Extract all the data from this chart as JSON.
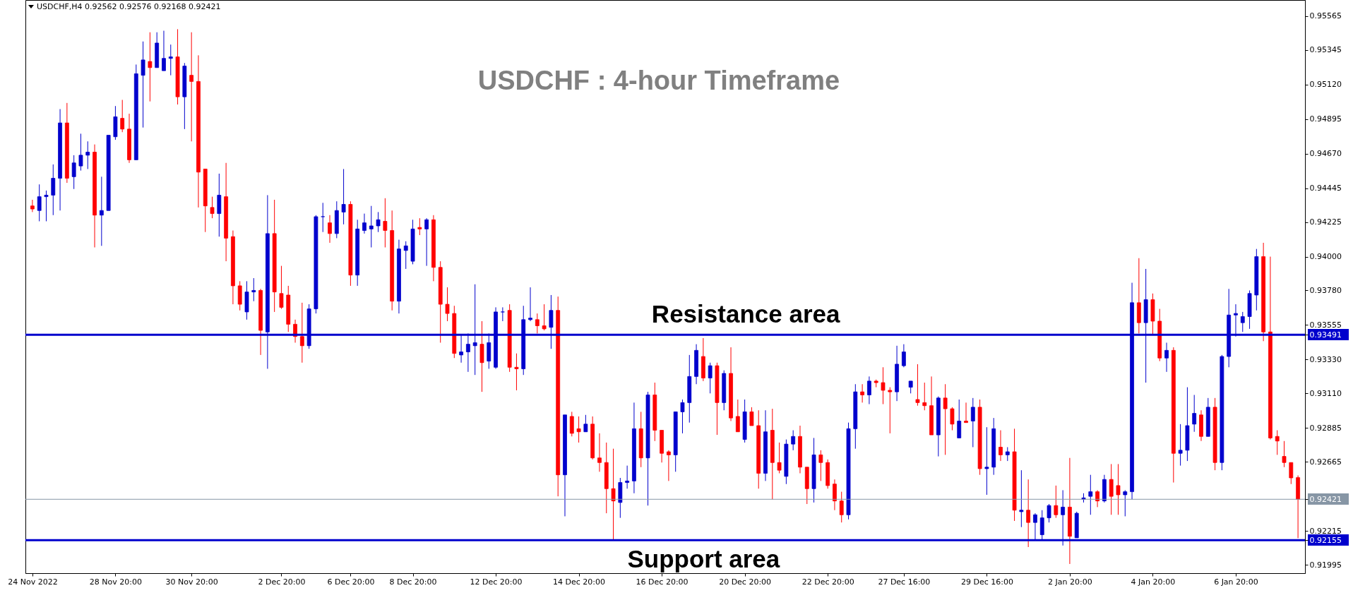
{
  "chart_data": {
    "type": "candlestick",
    "title": "USDCHF : 4-hour Timeframe",
    "annotations": [
      "USDCHF,H4  0.92562 0.92576 0.92168 0.92421"
    ],
    "categories": [
      "24 Nov 2022",
      null,
      null,
      null,
      null,
      null,
      null,
      null,
      null,
      null,
      null,
      null,
      "28 Nov 20:00",
      null,
      null,
      null,
      null,
      null,
      null,
      null,
      null,
      null,
      null,
      "30 Nov 20:00",
      null,
      null,
      null,
      null,
      null,
      null,
      null,
      null,
      null,
      null,
      null,
      null,
      "2 Dec 20:00",
      null,
      null,
      null,
      null,
      null,
      null,
      null,
      null,
      null,
      "6 Dec 20:00",
      null,
      null,
      null,
      null,
      null,
      null,
      null,
      null,
      "8 Dec 20:00",
      null,
      null,
      null,
      null,
      null,
      null,
      null,
      null,
      null,
      null,
      null,
      "12 Dec 20:00",
      null,
      null,
      null,
      null,
      null,
      null,
      null,
      null,
      null,
      null,
      null,
      "14 Dec 20:00",
      null,
      null,
      null,
      null,
      null,
      null,
      null,
      null,
      null,
      null,
      null,
      "16 Dec 20:00",
      null,
      null,
      null,
      null,
      null,
      null,
      null,
      null,
      null,
      null,
      null,
      "20 Dec 20:00",
      null,
      null,
      null,
      null,
      null,
      null,
      null,
      null,
      null,
      null,
      null,
      "22 Dec 20:00",
      null,
      null,
      null,
      null,
      null,
      null,
      null,
      null,
      null,
      null,
      "27 Dec 16:00",
      null,
      null,
      null,
      null,
      null,
      null,
      null,
      null,
      null,
      null,
      null,
      "29 Dec 16:00",
      null,
      null,
      null,
      null,
      null,
      null,
      null,
      null,
      null,
      null,
      null,
      "2 Jan 20:00",
      null,
      null,
      null,
      null,
      null,
      null,
      null,
      null,
      null,
      null,
      null,
      "4 Jan 20:00",
      null,
      null,
      null,
      null,
      null,
      null,
      null,
      null,
      null,
      null,
      null,
      "6 Jan 20:00",
      null,
      null,
      null,
      null,
      null,
      null,
      null,
      null,
      null
    ],
    "ohlc": [
      [
        0.9433,
        0.9437,
        0.9429,
        0.9431
      ],
      [
        0.943,
        0.9447,
        0.9423,
        0.9439
      ],
      [
        0.9439,
        0.9443,
        0.9423,
        0.944
      ],
      [
        0.944,
        0.946,
        0.9427,
        0.9451
      ],
      [
        0.9451,
        0.9496,
        0.943,
        0.9487
      ],
      [
        0.9487,
        0.95,
        0.9448,
        0.9451
      ],
      [
        0.9452,
        0.9466,
        0.9444,
        0.9461
      ],
      [
        0.9459,
        0.948,
        0.9456,
        0.9466
      ],
      [
        0.9466,
        0.9475,
        0.9457,
        0.9468
      ],
      [
        0.9468,
        0.9473,
        0.9406,
        0.9427
      ],
      [
        0.9427,
        0.9452,
        0.9407,
        0.943
      ],
      [
        0.943,
        0.9479,
        0.943,
        0.9479
      ],
      [
        0.9478,
        0.9498,
        0.9476,
        0.9491
      ],
      [
        0.949,
        0.9502,
        0.9481,
        0.9483
      ],
      [
        0.9483,
        0.9493,
        0.9461,
        0.9463
      ],
      [
        0.9463,
        0.9525,
        0.9463,
        0.9519
      ],
      [
        0.9518,
        0.954,
        0.9484,
        0.9528
      ],
      [
        0.9527,
        0.9546,
        0.9501,
        0.9523
      ],
      [
        0.9523,
        0.9546,
        0.9523,
        0.9539
      ],
      [
        0.9521,
        0.9547,
        0.9521,
        0.9529
      ],
      [
        0.9529,
        0.9538,
        0.9518,
        0.953
      ],
      [
        0.953,
        0.9548,
        0.9499,
        0.9504
      ],
      [
        0.9504,
        0.9526,
        0.9483,
        0.9524
      ],
      [
        0.9518,
        0.9546,
        0.9475,
        0.9514
      ],
      [
        0.9514,
        0.9531,
        0.9432,
        0.9455
      ],
      [
        0.9457,
        0.9457,
        0.9416,
        0.9433
      ],
      [
        0.9432,
        0.9439,
        0.9425,
        0.9428
      ],
      [
        0.9428,
        0.9454,
        0.9413,
        0.944
      ],
      [
        0.9439,
        0.9461,
        0.9397,
        0.9412
      ],
      [
        0.9413,
        0.9417,
        0.9369,
        0.9381
      ],
      [
        0.9381,
        0.9384,
        0.9365,
        0.9369
      ],
      [
        0.9364,
        0.9384,
        0.9359,
        0.9377
      ],
      [
        0.9377,
        0.9386,
        0.9371,
        0.9378
      ],
      [
        0.9378,
        0.9379,
        0.9336,
        0.9352
      ],
      [
        0.9351,
        0.944,
        0.9327,
        0.9415
      ],
      [
        0.9415,
        0.9437,
        0.9364,
        0.9377
      ],
      [
        0.9376,
        0.9394,
        0.9366,
        0.9367
      ],
      [
        0.9375,
        0.9381,
        0.9351,
        0.9356
      ],
      [
        0.9356,
        0.9359,
        0.9344,
        0.9348
      ],
      [
        0.9348,
        0.937,
        0.9331,
        0.9342
      ],
      [
        0.9342,
        0.9369,
        0.934,
        0.9366
      ],
      [
        0.9366,
        0.9427,
        0.9363,
        0.9426
      ],
      [
        0.9426,
        0.9435,
        0.9416,
        0.9426
      ],
      [
        0.9422,
        0.9427,
        0.9409,
        0.9415
      ],
      [
        0.9415,
        0.9436,
        0.9412,
        0.943
      ],
      [
        0.9429,
        0.9457,
        0.9421,
        0.9434
      ],
      [
        0.9434,
        0.9436,
        0.9381,
        0.9388
      ],
      [
        0.9388,
        0.9424,
        0.9381,
        0.9418
      ],
      [
        0.9417,
        0.9428,
        0.9415,
        0.9422
      ],
      [
        0.9418,
        0.9433,
        0.9406,
        0.942
      ],
      [
        0.942,
        0.9429,
        0.9416,
        0.9424
      ],
      [
        0.9423,
        0.9438,
        0.9406,
        0.9417
      ],
      [
        0.9417,
        0.943,
        0.9365,
        0.9371
      ],
      [
        0.9371,
        0.9411,
        0.9363,
        0.9405
      ],
      [
        0.9404,
        0.941,
        0.9392,
        0.9407
      ],
      [
        0.9397,
        0.9424,
        0.9395,
        0.9418
      ],
      [
        0.9419,
        0.9425,
        0.9414,
        0.9418
      ],
      [
        0.9418,
        0.9425,
        0.9394,
        0.9424
      ],
      [
        0.9424,
        0.9427,
        0.9384,
        0.9393
      ],
      [
        0.9393,
        0.9397,
        0.9344,
        0.9369
      ],
      [
        0.9369,
        0.938,
        0.9358,
        0.9363
      ],
      [
        0.9363,
        0.9368,
        0.9334,
        0.9337
      ],
      [
        0.9336,
        0.9349,
        0.9331,
        0.9338
      ],
      [
        0.9338,
        0.935,
        0.9325,
        0.9343
      ],
      [
        0.9342,
        0.9382,
        0.9323,
        0.9344
      ],
      [
        0.9343,
        0.9358,
        0.9312,
        0.9331
      ],
      [
        0.9332,
        0.935,
        0.9327,
        0.9344
      ],
      [
        0.9328,
        0.9367,
        0.9327,
        0.9364
      ],
      [
        0.9364,
        0.9367,
        0.9358,
        0.9364
      ],
      [
        0.9365,
        0.9369,
        0.9325,
        0.9328
      ],
      [
        0.9328,
        0.9337,
        0.9313,
        0.9327
      ],
      [
        0.9327,
        0.9368,
        0.9323,
        0.9359
      ],
      [
        0.9359,
        0.938,
        0.9358,
        0.936
      ],
      [
        0.9359,
        0.9363,
        0.935,
        0.9355
      ],
      [
        0.9355,
        0.9369,
        0.9352,
        0.9353
      ],
      [
        0.9354,
        0.9375,
        0.934,
        0.9365
      ],
      [
        0.9365,
        0.9374,
        0.9244,
        0.9258
      ],
      [
        0.9258,
        0.9297,
        0.9231,
        0.9297
      ],
      [
        0.9296,
        0.9299,
        0.9283,
        0.9285
      ],
      [
        0.9288,
        0.9296,
        0.9279,
        0.9286
      ],
      [
        0.9286,
        0.9297,
        0.9286,
        0.9291
      ],
      [
        0.9291,
        0.9296,
        0.9268,
        0.9269
      ],
      [
        0.9269,
        0.9285,
        0.926,
        0.9266
      ],
      [
        0.9266,
        0.9279,
        0.9233,
        0.9249
      ],
      [
        0.9249,
        0.9275,
        0.9216,
        0.9241
      ],
      [
        0.924,
        0.9256,
        0.923,
        0.9253
      ],
      [
        0.9253,
        0.9264,
        0.9249,
        0.9254
      ],
      [
        0.9254,
        0.9305,
        0.9246,
        0.9288
      ],
      [
        0.9288,
        0.9299,
        0.9263,
        0.9269
      ],
      [
        0.9269,
        0.9312,
        0.9238,
        0.931
      ],
      [
        0.931,
        0.9318,
        0.928,
        0.9287
      ],
      [
        0.9287,
        0.9287,
        0.9266,
        0.9272
      ],
      [
        0.9273,
        0.9274,
        0.9254,
        0.9271
      ],
      [
        0.9271,
        0.9299,
        0.926,
        0.9299
      ],
      [
        0.9299,
        0.9307,
        0.9285,
        0.9305
      ],
      [
        0.9305,
        0.9336,
        0.9292,
        0.9322
      ],
      [
        0.9322,
        0.9343,
        0.9317,
        0.9339
      ],
      [
        0.9335,
        0.9347,
        0.9319,
        0.9321
      ],
      [
        0.9321,
        0.9331,
        0.9311,
        0.9329
      ],
      [
        0.9329,
        0.9331,
        0.9284,
        0.9305
      ],
      [
        0.9305,
        0.9326,
        0.93,
        0.9324
      ],
      [
        0.9324,
        0.9341,
        0.9293,
        0.9295
      ],
      [
        0.9296,
        0.9307,
        0.9286,
        0.9286
      ],
      [
        0.9281,
        0.9307,
        0.9279,
        0.9299
      ],
      [
        0.9299,
        0.9302,
        0.929,
        0.929
      ],
      [
        0.929,
        0.93,
        0.9249,
        0.9259
      ],
      [
        0.9259,
        0.93,
        0.9254,
        0.9286
      ],
      [
        0.9287,
        0.9301,
        0.9242,
        0.9266
      ],
      [
        0.9266,
        0.9279,
        0.9259,
        0.9261
      ],
      [
        0.9257,
        0.9281,
        0.9252,
        0.9278
      ],
      [
        0.9278,
        0.9287,
        0.9274,
        0.9283
      ],
      [
        0.9283,
        0.929,
        0.9259,
        0.9263
      ],
      [
        0.9263,
        0.9263,
        0.9239,
        0.9249
      ],
      [
        0.9249,
        0.9282,
        0.924,
        0.9271
      ],
      [
        0.9271,
        0.9274,
        0.9254,
        0.9266
      ],
      [
        0.9266,
        0.9268,
        0.9249,
        0.9251
      ],
      [
        0.9252,
        0.9255,
        0.9235,
        0.9241
      ],
      [
        0.9241,
        0.9247,
        0.9227,
        0.9232
      ],
      [
        0.9232,
        0.9292,
        0.9229,
        0.9288
      ],
      [
        0.9288,
        0.9317,
        0.9275,
        0.9312
      ],
      [
        0.9312,
        0.9317,
        0.9305,
        0.931
      ],
      [
        0.931,
        0.9322,
        0.9304,
        0.9319
      ],
      [
        0.9319,
        0.932,
        0.9315,
        0.9318
      ],
      [
        0.9318,
        0.9328,
        0.9304,
        0.9313
      ],
      [
        0.9313,
        0.9315,
        0.9285,
        0.9312
      ],
      [
        0.9312,
        0.9342,
        0.9306,
        0.933
      ],
      [
        0.9329,
        0.9343,
        0.9328,
        0.9338
      ],
      [
        0.9315,
        0.9319,
        0.9311,
        0.9319
      ],
      [
        0.9307,
        0.933,
        0.9303,
        0.9305
      ],
      [
        0.9305,
        0.9318,
        0.93,
        0.9303
      ],
      [
        0.9303,
        0.9322,
        0.9284,
        0.9284
      ],
      [
        0.9284,
        0.9309,
        0.927,
        0.9308
      ],
      [
        0.9308,
        0.9317,
        0.9271,
        0.9301
      ],
      [
        0.9301,
        0.9302,
        0.9287,
        0.9291
      ],
      [
        0.9282,
        0.9307,
        0.9282,
        0.9293
      ],
      [
        0.9293,
        0.9305,
        0.9292,
        0.9292
      ],
      [
        0.9293,
        0.9308,
        0.9276,
        0.9302
      ],
      [
        0.9302,
        0.9307,
        0.9258,
        0.9262
      ],
      [
        0.9262,
        0.9289,
        0.9245,
        0.9263
      ],
      [
        0.9263,
        0.9295,
        0.9258,
        0.9288
      ],
      [
        0.9276,
        0.9287,
        0.9267,
        0.9271
      ],
      [
        0.9271,
        0.9276,
        0.9267,
        0.9273
      ],
      [
        0.9273,
        0.9288,
        0.9228,
        0.9235
      ],
      [
        0.9234,
        0.9261,
        0.9224,
        0.9235
      ],
      [
        0.9235,
        0.9255,
        0.9211,
        0.9227
      ],
      [
        0.9227,
        0.9233,
        0.9216,
        0.9232
      ],
      [
        0.9219,
        0.9235,
        0.9216,
        0.923
      ],
      [
        0.923,
        0.9239,
        0.9227,
        0.9238
      ],
      [
        0.9238,
        0.9251,
        0.923,
        0.9232
      ],
      [
        0.9232,
        0.9248,
        0.9212,
        0.9237
      ],
      [
        0.9237,
        0.9269,
        0.92,
        0.9218
      ],
      [
        0.9217,
        0.9234,
        0.9217,
        0.9233
      ],
      [
        0.9242,
        0.9246,
        0.924,
        0.9243
      ],
      [
        0.9244,
        0.9258,
        0.9232,
        0.9247
      ],
      [
        0.9247,
        0.9248,
        0.9237,
        0.9241
      ],
      [
        0.9241,
        0.9258,
        0.924,
        0.9255
      ],
      [
        0.9255,
        0.9265,
        0.9232,
        0.9244
      ],
      [
        0.9251,
        0.9265,
        0.9232,
        0.9245
      ],
      [
        0.9245,
        0.9248,
        0.9231,
        0.9247
      ],
      [
        0.9247,
        0.9383,
        0.9242,
        0.937
      ],
      [
        0.937,
        0.9399,
        0.935,
        0.9357
      ],
      [
        0.9357,
        0.9392,
        0.9318,
        0.9372
      ],
      [
        0.9372,
        0.9376,
        0.9349,
        0.9358
      ],
      [
        0.9358,
        0.9366,
        0.9332,
        0.9334
      ],
      [
        0.9334,
        0.9344,
        0.9325,
        0.9339
      ],
      [
        0.9339,
        0.9341,
        0.9253,
        0.9272
      ],
      [
        0.9272,
        0.9291,
        0.9264,
        0.9274
      ],
      [
        0.9274,
        0.9315,
        0.9267,
        0.929
      ],
      [
        0.9291,
        0.931,
        0.9286,
        0.9298
      ],
      [
        0.9297,
        0.93,
        0.928,
        0.9283
      ],
      [
        0.9283,
        0.9308,
        0.9283,
        0.9302
      ],
      [
        0.9302,
        0.9308,
        0.9261,
        0.9266
      ],
      [
        0.9266,
        0.9336,
        0.9261,
        0.9335
      ],
      [
        0.9335,
        0.9379,
        0.9328,
        0.9362
      ],
      [
        0.9362,
        0.9369,
        0.9348,
        0.9363
      ],
      [
        0.9357,
        0.9364,
        0.9351,
        0.9361
      ],
      [
        0.9361,
        0.9378,
        0.9353,
        0.9376
      ],
      [
        0.9375,
        0.9405,
        0.9365,
        0.94
      ],
      [
        0.94,
        0.9409,
        0.9345,
        0.9351
      ],
      [
        0.9351,
        0.94,
        0.9281,
        0.9282
      ],
      [
        0.9283,
        0.9287,
        0.9271,
        0.928
      ],
      [
        0.927,
        0.928,
        0.9263,
        0.9266
      ],
      [
        0.9266,
        0.9266,
        0.9252,
        0.9256
      ],
      [
        0.92562,
        0.92576,
        0.92168,
        0.92421
      ]
    ],
    "colors": [
      "#ff0000",
      "#0000cd",
      "#0000cd",
      "#0000cd",
      "#0000cd",
      "#ff0000",
      "#0000cd",
      "#0000cd",
      "#0000cd",
      "#ff0000",
      "#0000cd",
      "#0000cd",
      "#0000cd",
      "#ff0000",
      "#ff0000",
      "#0000cd",
      "#0000cd",
      "#ff0000",
      "#0000cd",
      "#0000cd",
      "#0000cd",
      "#ff0000",
      "#0000cd",
      "#ff0000",
      "#ff0000",
      "#ff0000",
      "#ff0000",
      "#0000cd",
      "#ff0000",
      "#ff0000",
      "#ff0000",
      "#0000cd",
      "#0000cd",
      "#ff0000",
      "#0000cd",
      "#ff0000",
      "#ff0000",
      "#ff0000",
      "#ff0000",
      "#ff0000",
      "#0000cd",
      "#0000cd",
      "#0000cd",
      "#ff0000",
      "#0000cd",
      "#0000cd",
      "#ff0000",
      "#0000cd",
      "#0000cd",
      "#0000cd",
      "#0000cd",
      "#ff0000",
      "#ff0000",
      "#0000cd",
      "#0000cd",
      "#0000cd",
      "#ff0000",
      "#0000cd",
      "#ff0000",
      "#ff0000",
      "#ff0000",
      "#ff0000",
      "#0000cd",
      "#0000cd",
      "#0000cd",
      "#ff0000",
      "#0000cd",
      "#0000cd",
      "#0000cd",
      "#ff0000",
      "#ff0000",
      "#0000cd",
      "#0000cd",
      "#ff0000",
      "#ff0000",
      "#0000cd",
      "#ff0000",
      "#0000cd",
      "#ff0000",
      "#ff0000",
      "#0000cd",
      "#ff0000",
      "#ff0000",
      "#ff0000",
      "#ff0000",
      "#0000cd",
      "#0000cd",
      "#0000cd",
      "#ff0000",
      "#0000cd",
      "#ff0000",
      "#ff0000",
      "#ff0000",
      "#0000cd",
      "#0000cd",
      "#0000cd",
      "#0000cd",
      "#ff0000",
      "#0000cd",
      "#ff0000",
      "#0000cd",
      "#ff0000",
      "#ff0000",
      "#0000cd",
      "#ff0000",
      "#ff0000",
      "#0000cd",
      "#ff0000",
      "#ff0000",
      "#0000cd",
      "#0000cd",
      "#ff0000",
      "#ff0000",
      "#0000cd",
      "#ff0000",
      "#ff0000",
      "#ff0000",
      "#ff0000",
      "#0000cd",
      "#0000cd",
      "#ff0000",
      "#0000cd",
      "#ff0000",
      "#ff0000",
      "#ff0000",
      "#0000cd",
      "#0000cd",
      "#0000cd",
      "#ff0000",
      "#ff0000",
      "#ff0000",
      "#0000cd",
      "#ff0000",
      "#ff0000",
      "#0000cd",
      "#ff0000",
      "#0000cd",
      "#ff0000",
      "#0000cd",
      "#0000cd",
      "#ff0000",
      "#0000cd",
      "#ff0000",
      "#0000cd",
      "#ff0000",
      "#0000cd",
      "#0000cd",
      "#0000cd",
      "#ff0000",
      "#0000cd",
      "#ff0000",
      "#0000cd",
      "#0000cd",
      "#0000cd",
      "#ff0000",
      "#0000cd",
      "#ff0000",
      "#ff0000",
      "#0000cd",
      "#0000cd",
      "#ff0000",
      "#0000cd",
      "#ff0000",
      "#ff0000",
      "#0000cd",
      "#ff0000",
      "#0000cd",
      "#0000cd",
      "#0000cd",
      "#ff0000",
      "#0000cd",
      "#ff0000",
      "#0000cd",
      "#0000cd",
      "#0000cd",
      "#0000cd",
      "#0000cd",
      "#0000cd",
      "#ff0000",
      "#ff0000",
      "#ff0000",
      "#ff0000",
      "#ff0000",
      "#ff0000"
    ],
    "ylim": [
      0.9194,
      0.9567
    ],
    "yticks": [
      0.95565,
      0.95345,
      {
        "value": 0.9512,
        "label": "0.95120"
      },
      0.94895,
      {
        "value": 0.9467,
        "label": "0.94670"
      },
      0.94445,
      0.94225,
      {
        "value": 0.94,
        "label": "0.94000"
      },
      {
        "value": 0.9378,
        "label": "0.93780"
      },
      0.93555,
      0.93491,
      {
        "value": 0.9333,
        "label": "0.93330"
      },
      {
        "value": 0.9311,
        "label": "0.93110"
      },
      0.92885,
      0.92665,
      0.92421,
      0.92215,
      0.92155,
      0.91995
    ],
    "ref_lines": [
      {
        "axis": "y",
        "value": 0.93491,
        "label": "Resistance area",
        "color": "#0000cd"
      },
      {
        "axis": "y",
        "value": 0.92155,
        "label": "Support area",
        "color": "#0000cd"
      },
      {
        "axis": "y",
        "value": 0.92421,
        "color": "#8796a5"
      }
    ]
  }
}
